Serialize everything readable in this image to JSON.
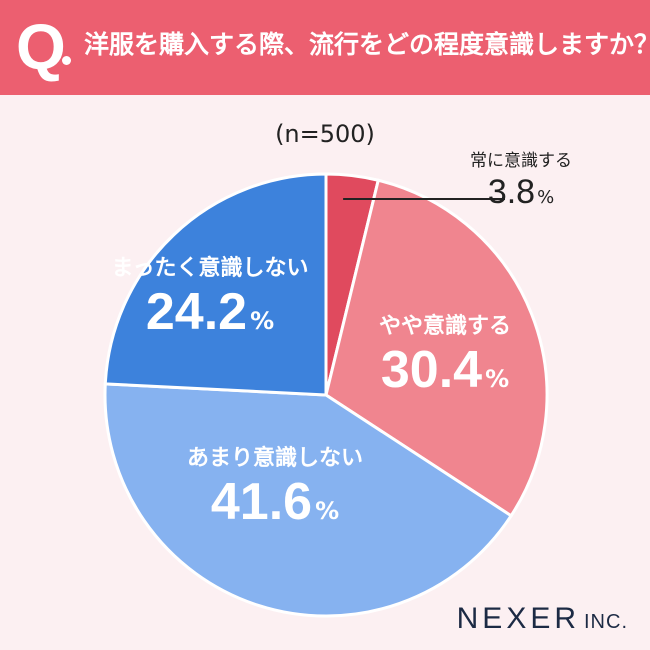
{
  "header": {
    "q_letter": "Q",
    "question": "洋服を購入する際、流行をどの程度意識しますか？"
  },
  "chart_data": {
    "type": "pie",
    "title": "洋服を購入する際、流行をどの程度意識しますか？",
    "sample_label": "(n=500)",
    "unit": "%",
    "slices": [
      {
        "label": "常に意識する",
        "value": 3.8,
        "color": "#e04a5e"
      },
      {
        "label": "やや意識する",
        "value": 30.4,
        "color": "#f0858f"
      },
      {
        "label": "あまり意識しない",
        "value": 41.6,
        "color": "#86b2f0"
      },
      {
        "label": "まったく意識しない",
        "value": 24.2,
        "color": "#3d82dc"
      }
    ]
  },
  "colors": {
    "banner": "#ec5f70",
    "background": "#fcf0f2",
    "label_blue": "#3d82dc",
    "logo": "#1c2a44"
  },
  "footer": {
    "logo_main": "NEXER",
    "logo_suffix": "INC."
  }
}
